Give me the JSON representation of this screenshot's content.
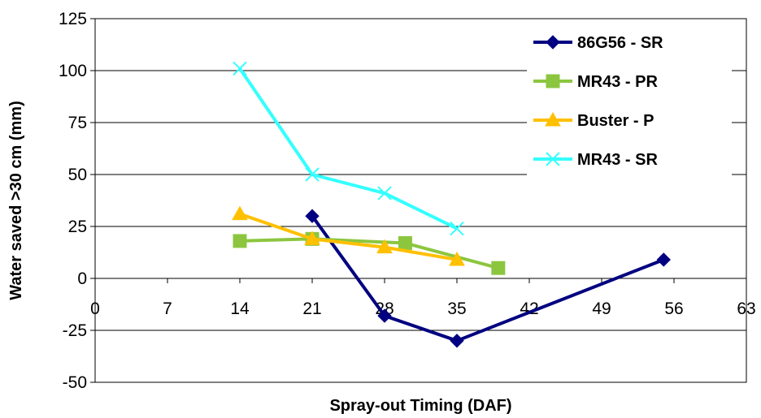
{
  "chart_data": {
    "type": "line",
    "title": "",
    "xlabel": "Spray-out Timing (DAF)",
    "ylabel": "Water saved >30 cm (mm)",
    "xlim": [
      0,
      63
    ],
    "ylim": [
      -50,
      125
    ],
    "x_ticks": [
      "0",
      "7",
      "14",
      "21",
      "28",
      "35",
      "42",
      "49",
      "56",
      "63"
    ],
    "y_ticks": [
      "-50",
      "-25",
      "0",
      "25",
      "50",
      "75",
      "100",
      "125"
    ],
    "grid": "horizontal",
    "legend_position": "top-right",
    "series": [
      {
        "name": "86G56 - SR",
        "color": "#000080",
        "marker": "diamond",
        "points": [
          [
            21,
            30
          ],
          [
            28,
            -18
          ],
          [
            35,
            -30
          ],
          [
            55,
            9
          ]
        ]
      },
      {
        "name": "MR43 - PR",
        "color": "#8cc63f",
        "marker": "square",
        "points": [
          [
            14,
            18
          ],
          [
            21,
            19
          ],
          [
            30,
            17
          ],
          [
            39,
            5
          ]
        ]
      },
      {
        "name": "Buster - P",
        "color": "#ffc000",
        "marker": "triangle",
        "points": [
          [
            14,
            31
          ],
          [
            21,
            19
          ],
          [
            28,
            15
          ],
          [
            35,
            9
          ]
        ]
      },
      {
        "name": "MR43 - SR",
        "color": "#33ffff",
        "marker": "x",
        "points": [
          [
            14,
            101
          ],
          [
            21,
            50
          ],
          [
            28,
            41
          ],
          [
            35,
            24
          ]
        ]
      }
    ]
  }
}
